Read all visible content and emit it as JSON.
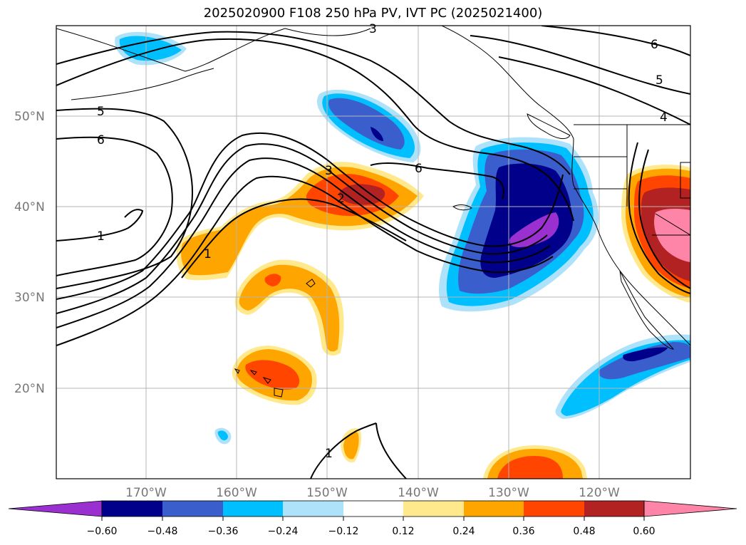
{
  "title": "2025020900 F108 250 hPa PV, IVT PC (2025021400)",
  "map": {
    "lat_labels": [
      "50°N",
      "40°N",
      "30°N",
      "20°N"
    ],
    "lon_labels": [
      "170°W",
      "160°W",
      "150°W",
      "140°W",
      "130°W",
      "120°W"
    ],
    "contour_labels": [
      "5",
      "6",
      "1",
      "1",
      "3",
      "2",
      "6",
      "5",
      "4",
      "6",
      "1",
      "3"
    ]
  },
  "colorbar": {
    "ticks": [
      "−0.60",
      "−0.48",
      "−0.36",
      "−0.24",
      "−0.12",
      "0.12",
      "0.24",
      "0.36",
      "0.48",
      "0.60"
    ],
    "colors": [
      "#9b30d0",
      "#00008b",
      "#3a5fcd",
      "#00bfff",
      "#aee2fa",
      "#ffffff",
      "#ffe98c",
      "#ffa500",
      "#ff4500",
      "#b22222",
      "#ff85a8"
    ]
  }
}
